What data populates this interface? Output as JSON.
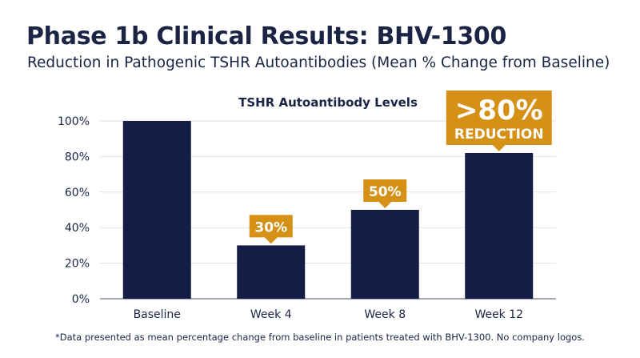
{
  "header": {
    "title": "Phase 1b Clinical Results: BHV-1300",
    "subtitle": "Reduction in Pathogenic TSHR Autoantibodies (Mean % Change from Baseline)"
  },
  "footnote": "*Data presented as mean percentage change from baseline in patients treated with BHV-1300. No company logos.",
  "chart_data": {
    "type": "bar",
    "title": "TSHR Autoantibody Levels",
    "categories": [
      "Baseline",
      "Week 4",
      "Week 8",
      "Week 12"
    ],
    "values": [
      100,
      30,
      50,
      82
    ],
    "ylim": [
      0,
      100
    ],
    "yticks": [
      "0%",
      "20%",
      "40%",
      "60%",
      "80%",
      "100%"
    ],
    "grid": true,
    "bar_color": "#131d45",
    "callouts": [
      {
        "category": "Week 4",
        "text": "30%"
      },
      {
        "category": "Week 8",
        "text": "50%"
      },
      {
        "category": "Week 12",
        "text": ">80%",
        "subtext": "REDUCTION"
      }
    ],
    "callout_color": "#d49116"
  }
}
